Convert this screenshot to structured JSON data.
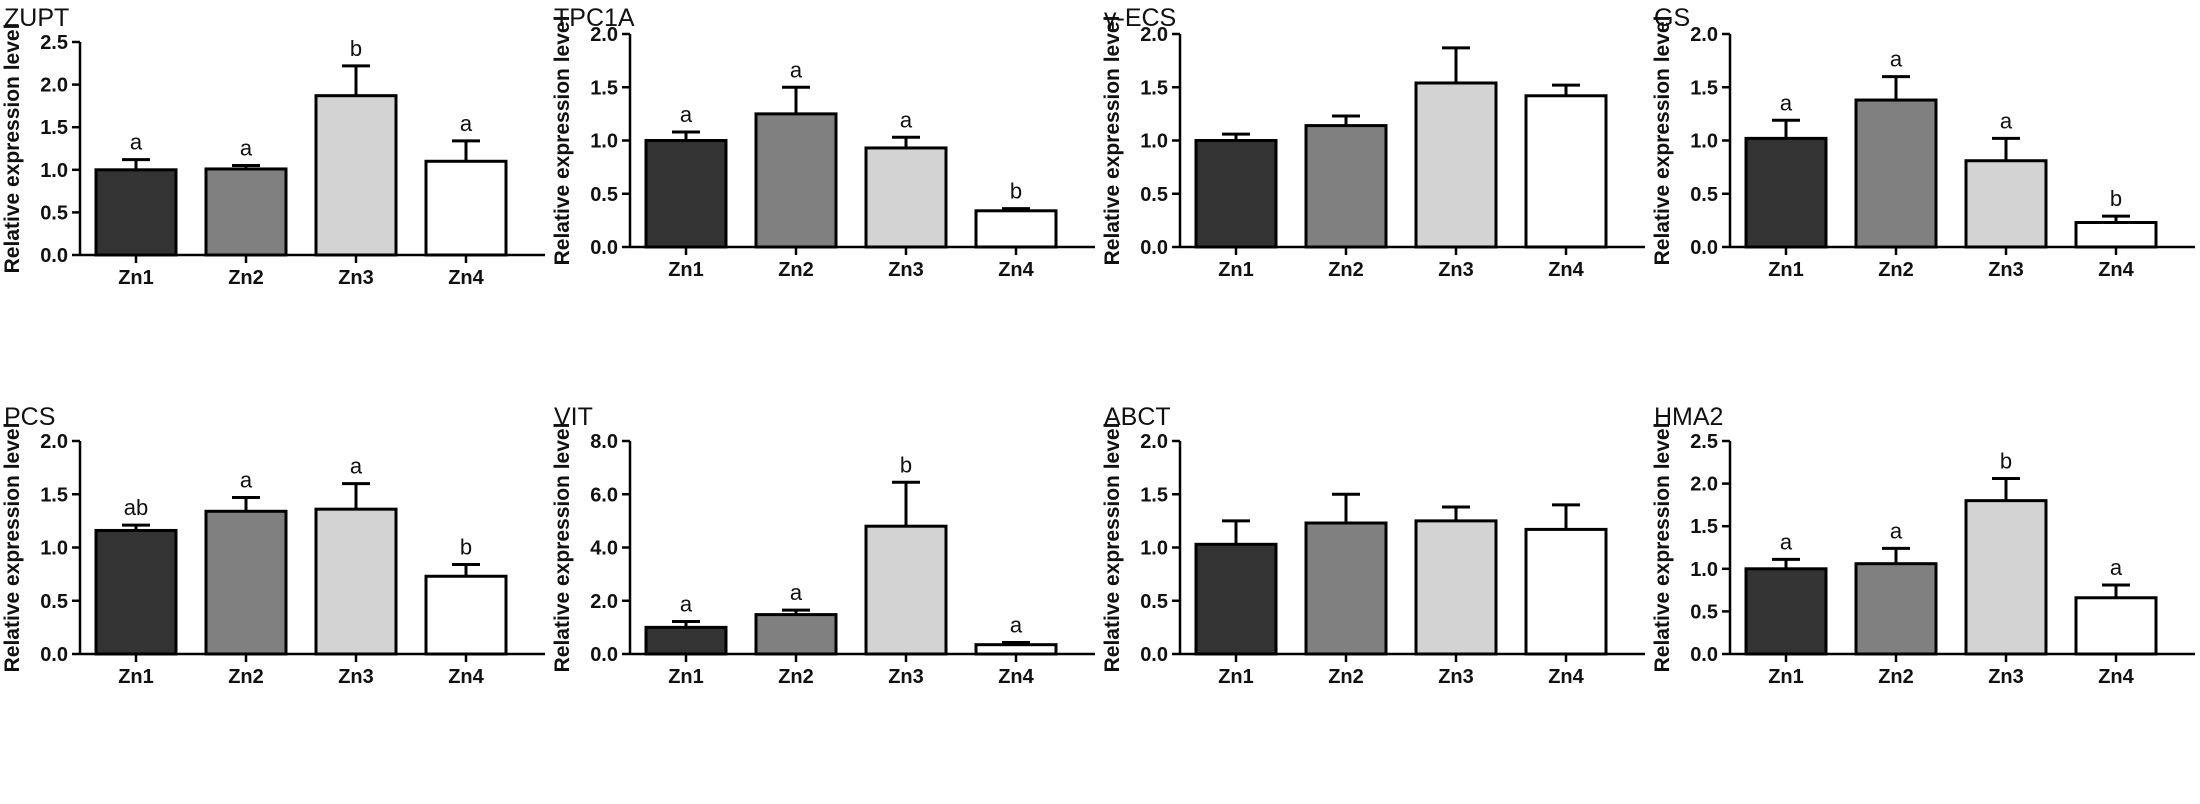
{
  "colors": {
    "Zn1": "#333333",
    "Zn2": "#808080",
    "Zn3": "#d3d3d3",
    "Zn4": "#ffffff",
    "stroke": "#000000"
  },
  "chart_data": [
    {
      "type": "bar",
      "title": "ZUPT",
      "ylabel": "Relative expression level",
      "categories": [
        "Zn1",
        "Zn2",
        "Zn3",
        "Zn4"
      ],
      "values": [
        1.0,
        1.01,
        1.87,
        1.1
      ],
      "errors": [
        0.12,
        0.04,
        0.35,
        0.24
      ],
      "significance": [
        "a",
        "a",
        "b",
        "a"
      ],
      "ylim": [
        0,
        2.5
      ],
      "yticks": [
        "0.0",
        "0.5",
        "1.0",
        "1.5",
        "2.0",
        "2.5"
      ]
    },
    {
      "type": "bar",
      "title": "TPC1A",
      "ylabel": "Relative expression level",
      "categories": [
        "Zn1",
        "Zn2",
        "Zn3",
        "Zn4"
      ],
      "values": [
        1.0,
        1.25,
        0.93,
        0.34
      ],
      "errors": [
        0.08,
        0.25,
        0.1,
        0.02
      ],
      "significance": [
        "a",
        "a",
        "a",
        "b"
      ],
      "ylim": [
        0,
        2.0
      ],
      "yticks": [
        "0.0",
        "0.5",
        "1.0",
        "1.5",
        "2.0"
      ]
    },
    {
      "type": "bar",
      "title": "γ-ECS",
      "ylabel": "Relative expression level",
      "categories": [
        "Zn1",
        "Zn2",
        "Zn3",
        "Zn4"
      ],
      "values": [
        1.0,
        1.14,
        1.54,
        1.42
      ],
      "errors": [
        0.06,
        0.09,
        0.33,
        0.1
      ],
      "significance": [
        "",
        "",
        "",
        ""
      ],
      "ylim": [
        0,
        2.0
      ],
      "yticks": [
        "0.0",
        "0.5",
        "1.0",
        "1.5",
        "2.0"
      ]
    },
    {
      "type": "bar",
      "title": "GS",
      "ylabel": "Relative expression level",
      "categories": [
        "Zn1",
        "Zn2",
        "Zn3",
        "Zn4"
      ],
      "values": [
        1.02,
        1.38,
        0.81,
        0.23
      ],
      "errors": [
        0.17,
        0.22,
        0.21,
        0.06
      ],
      "significance": [
        "a",
        "a",
        "a",
        "b"
      ],
      "ylim": [
        0,
        2.0
      ],
      "yticks": [
        "0.0",
        "0.5",
        "1.0",
        "1.5",
        "2.0"
      ]
    },
    {
      "type": "bar",
      "title": "PCS",
      "ylabel": "Relative expression level",
      "categories": [
        "Zn1",
        "Zn2",
        "Zn3",
        "Zn4"
      ],
      "values": [
        1.16,
        1.34,
        1.36,
        0.73
      ],
      "errors": [
        0.05,
        0.13,
        0.24,
        0.11
      ],
      "significance": [
        "ab",
        "a",
        "a",
        "b"
      ],
      "ylim": [
        0,
        2.0
      ],
      "yticks": [
        "0.0",
        "0.5",
        "1.0",
        "1.5",
        "2.0"
      ]
    },
    {
      "type": "bar",
      "title": "VIT",
      "ylabel": "Relative expression level",
      "categories": [
        "Zn1",
        "Zn2",
        "Zn3",
        "Zn4"
      ],
      "values": [
        1.0,
        1.48,
        4.8,
        0.35
      ],
      "errors": [
        0.22,
        0.17,
        1.65,
        0.08
      ],
      "significance": [
        "a",
        "a",
        "b",
        "a"
      ],
      "ylim": [
        0,
        8.0
      ],
      "yticks": [
        "0.0",
        "2.0",
        "4.0",
        "6.0",
        "8.0"
      ]
    },
    {
      "type": "bar",
      "title": "ABCT",
      "ylabel": "Relative expression level",
      "categories": [
        "Zn1",
        "Zn2",
        "Zn3",
        "Zn4"
      ],
      "values": [
        1.03,
        1.23,
        1.25,
        1.17
      ],
      "errors": [
        0.22,
        0.27,
        0.13,
        0.23
      ],
      "significance": [
        "",
        "",
        "",
        ""
      ],
      "ylim": [
        0,
        2.0
      ],
      "yticks": [
        "0.0",
        "0.5",
        "1.0",
        "1.5",
        "2.0"
      ]
    },
    {
      "type": "bar",
      "title": "HMA2",
      "ylabel": "Relative expression level",
      "categories": [
        "Zn1",
        "Zn2",
        "Zn3",
        "Zn4"
      ],
      "values": [
        1.0,
        1.06,
        1.8,
        0.66
      ],
      "errors": [
        0.11,
        0.18,
        0.26,
        0.15
      ],
      "significance": [
        "a",
        "a",
        "b",
        "a"
      ],
      "ylim": [
        0,
        2.5
      ],
      "yticks": [
        "0.0",
        "0.5",
        "1.0",
        "1.5",
        "2.0",
        "2.5"
      ]
    }
  ]
}
